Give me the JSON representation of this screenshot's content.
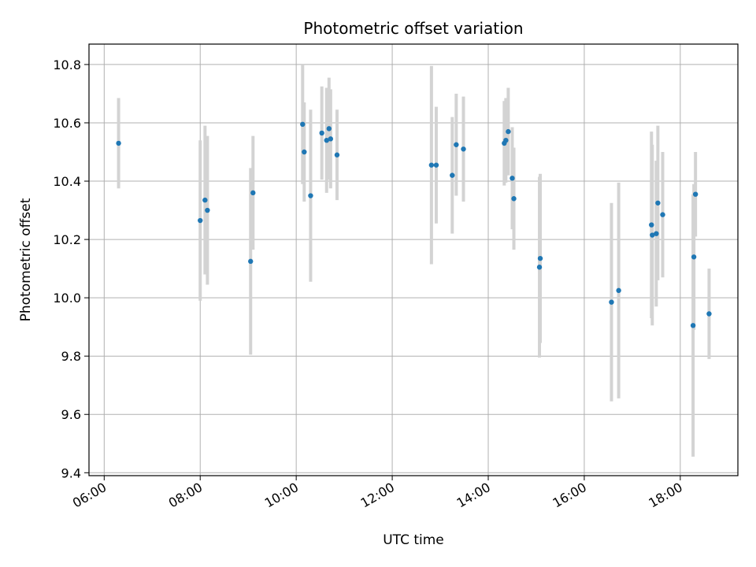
{
  "chart_data": {
    "type": "scatter",
    "title": "Photometric offset variation",
    "xlabel": "UTC time",
    "ylabel": "Photometric offset",
    "xlim": [
      "05:41",
      "19:12"
    ],
    "ylim": [
      9.39,
      10.87
    ],
    "x_ticks": [
      "06:00",
      "08:00",
      "10:00",
      "12:00",
      "14:00",
      "16:00",
      "18:00"
    ],
    "y_ticks": [
      "9.4",
      "9.6",
      "9.8",
      "10.0",
      "10.2",
      "10.4",
      "10.6",
      "10.8"
    ],
    "grid": true,
    "colors": {
      "point": "#1f77b4",
      "errorbar": "#d3d3d3",
      "grid": "#b0b0b0"
    },
    "points": [
      {
        "x": "06:18",
        "y": 10.53,
        "err": 0.155
      },
      {
        "x": "08:00",
        "y": 10.265,
        "err": 0.275
      },
      {
        "x": "08:06",
        "y": 10.335,
        "err": 0.255
      },
      {
        "x": "08:09",
        "y": 10.3,
        "err": 0.255
      },
      {
        "x": "09:03",
        "y": 10.125,
        "err": 0.32
      },
      {
        "x": "09:06",
        "y": 10.36,
        "err": 0.195
      },
      {
        "x": "10:08",
        "y": 10.595,
        "err": 0.205
      },
      {
        "x": "10:10",
        "y": 10.5,
        "err": 0.17
      },
      {
        "x": "10:18",
        "y": 10.35,
        "err": 0.295
      },
      {
        "x": "10:32",
        "y": 10.565,
        "err": 0.16
      },
      {
        "x": "10:38",
        "y": 10.54,
        "err": 0.18
      },
      {
        "x": "10:41",
        "y": 10.58,
        "err": 0.175
      },
      {
        "x": "10:43",
        "y": 10.545,
        "err": 0.17
      },
      {
        "x": "10:51",
        "y": 10.49,
        "err": 0.155
      },
      {
        "x": "12:49",
        "y": 10.455,
        "err": 0.34
      },
      {
        "x": "12:55",
        "y": 10.455,
        "err": 0.2
      },
      {
        "x": "13:15",
        "y": 10.42,
        "err": 0.2
      },
      {
        "x": "13:20",
        "y": 10.525,
        "err": 0.175
      },
      {
        "x": "13:29",
        "y": 10.51,
        "err": 0.18
      },
      {
        "x": "14:20",
        "y": 10.53,
        "err": 0.145
      },
      {
        "x": "14:22",
        "y": 10.54,
        "err": 0.145
      },
      {
        "x": "14:25",
        "y": 10.57,
        "err": 0.15
      },
      {
        "x": "14:30",
        "y": 10.41,
        "err": 0.175
      },
      {
        "x": "14:32",
        "y": 10.34,
        "err": 0.175
      },
      {
        "x": "15:04",
        "y": 10.105,
        "err": 0.31
      },
      {
        "x": "15:05",
        "y": 10.135,
        "err": 0.29
      },
      {
        "x": "16:34",
        "y": 9.985,
        "err": 0.34
      },
      {
        "x": "16:43",
        "y": 10.025,
        "err": 0.37
      },
      {
        "x": "17:24",
        "y": 10.25,
        "err": 0.32
      },
      {
        "x": "17:25",
        "y": 10.215,
        "err": 0.31
      },
      {
        "x": "17:30",
        "y": 10.22,
        "err": 0.25
      },
      {
        "x": "17:32",
        "y": 10.325,
        "err": 0.265
      },
      {
        "x": "17:38",
        "y": 10.285,
        "err": 0.215
      },
      {
        "x": "18:16",
        "y": 9.905,
        "err": 0.45
      },
      {
        "x": "18:17",
        "y": 10.14,
        "err": 0.25
      },
      {
        "x": "18:19",
        "y": 10.355,
        "err": 0.145
      },
      {
        "x": "18:36",
        "y": 9.945,
        "err": 0.155
      }
    ]
  }
}
